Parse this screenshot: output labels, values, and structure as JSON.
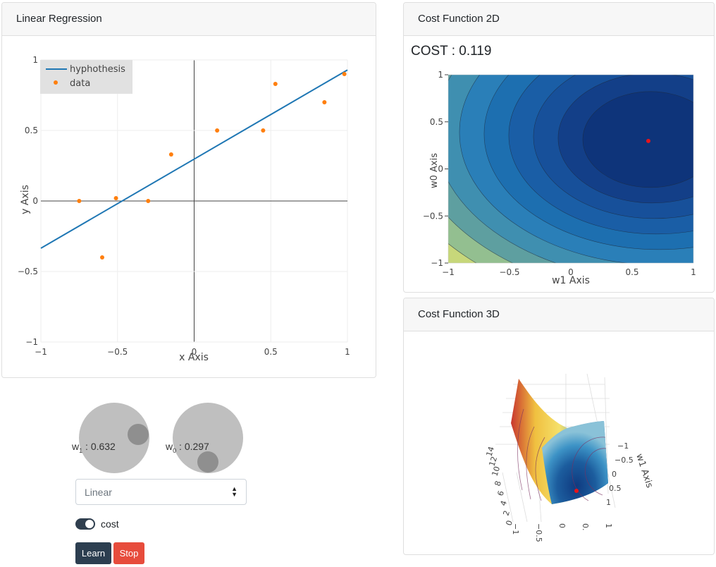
{
  "regression": {
    "title": "Linear Regression",
    "legend": {
      "line_label": "hyphothesis",
      "points_label": "data"
    },
    "xlabel": "x Axis",
    "ylabel": "y Axis"
  },
  "cost2d": {
    "title": "Cost Function 2D",
    "cost_label": "COST",
    "cost_value": "0.119",
    "xlabel": "w1 Axis",
    "ylabel": "w0 Axis"
  },
  "cost3d": {
    "title": "Cost Function 3D",
    "axis_w1": "w1 Axis",
    "tick_right": [
      "−1",
      "−0.5",
      "0",
      "0.5",
      "1"
    ],
    "tick_bottom": [
      "−1",
      "−0.5",
      "0",
      "0.",
      "1"
    ],
    "tick_left": [
      "0",
      "2",
      "4",
      "6",
      "8",
      "10",
      "12",
      "14"
    ]
  },
  "controls": {
    "w1_label": "w",
    "w1_sub": "1",
    "w1_value": "0.632",
    "w0_label": "w",
    "w0_sub": "0",
    "w0_value": "0.297",
    "model_select": "Linear",
    "cost_toggle_label": "cost",
    "learn_label": "Learn",
    "stop_label": "Stop"
  },
  "colors": {
    "line": "#1f77b4",
    "points": "#ff7f0e",
    "marker": "#e8141a",
    "learn": "#2c3e50",
    "stop": "#e74c3c"
  },
  "chart_data": [
    {
      "type": "scatter",
      "title": "Linear Regression",
      "xlabel": "x Axis",
      "ylabel": "y Axis",
      "xlim": [
        -1,
        1
      ],
      "ylim": [
        -1,
        1
      ],
      "xticks": [
        -1,
        -0.5,
        0,
        0.5,
        1
      ],
      "yticks": [
        -1,
        -0.5,
        0,
        0.5,
        1
      ],
      "series": [
        {
          "name": "data",
          "x": [
            -0.75,
            -0.6,
            -0.51,
            -0.3,
            -0.15,
            0.15,
            0.45,
            0.53,
            0.85,
            0.98
          ],
          "y": [
            0,
            -0.4,
            0.02,
            0,
            0.33,
            0.5,
            0.5,
            0.83,
            0.7,
            0.9
          ]
        },
        {
          "name": "hyphothesis",
          "x": [
            -1,
            1
          ],
          "y": [
            -0.335,
            0.929
          ]
        }
      ],
      "legend": "top-left",
      "grid": true
    },
    {
      "type": "heatmap",
      "title": "Cost Function 2D",
      "xlabel": "w1 Axis",
      "ylabel": "w0 Axis",
      "xlim": [
        -1,
        1
      ],
      "ylim": [
        -1,
        1
      ],
      "xticks": [
        -1,
        -0.5,
        0,
        0.5,
        1
      ],
      "yticks": [
        -1,
        -0.5,
        0,
        0.5,
        1
      ],
      "minimum": {
        "w1": 0.632,
        "w0": 0.297
      }
    },
    {
      "type": "surface",
      "title": "Cost Function 3D",
      "axis_label": "w1 Axis",
      "ticks_w1": [
        -1,
        -0.5,
        0,
        0.5,
        1
      ],
      "ticks_z": [
        0,
        2,
        4,
        6,
        8,
        10,
        12,
        14
      ]
    }
  ]
}
